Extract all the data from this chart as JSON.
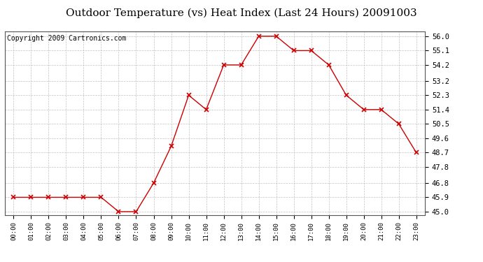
{
  "title": "Outdoor Temperature (vs) Heat Index (Last 24 Hours) 20091003",
  "copyright": "Copyright 2009 Cartronics.com",
  "x_labels": [
    "00:00",
    "01:00",
    "02:00",
    "03:00",
    "04:00",
    "05:00",
    "06:00",
    "07:00",
    "08:00",
    "09:00",
    "10:00",
    "11:00",
    "12:00",
    "13:00",
    "14:00",
    "15:00",
    "16:00",
    "17:00",
    "18:00",
    "19:00",
    "20:00",
    "21:00",
    "22:00",
    "23:00"
  ],
  "y_values": [
    45.9,
    45.9,
    45.9,
    45.9,
    45.9,
    45.9,
    45.0,
    45.0,
    46.8,
    49.1,
    52.3,
    51.4,
    54.2,
    54.2,
    56.0,
    56.0,
    55.1,
    55.1,
    54.2,
    52.3,
    51.4,
    51.4,
    50.5,
    48.7
  ],
  "y_ticks": [
    45.0,
    45.9,
    46.8,
    47.8,
    48.7,
    49.6,
    50.5,
    51.4,
    52.3,
    53.2,
    54.2,
    55.1,
    56.0
  ],
  "ylim": [
    44.8,
    56.3
  ],
  "line_color": "#cc0000",
  "marker": "x",
  "marker_color": "#cc0000",
  "bg_color": "#ffffff",
  "grid_color": "#bbbbbb",
  "title_fontsize": 11,
  "copyright_fontsize": 7
}
